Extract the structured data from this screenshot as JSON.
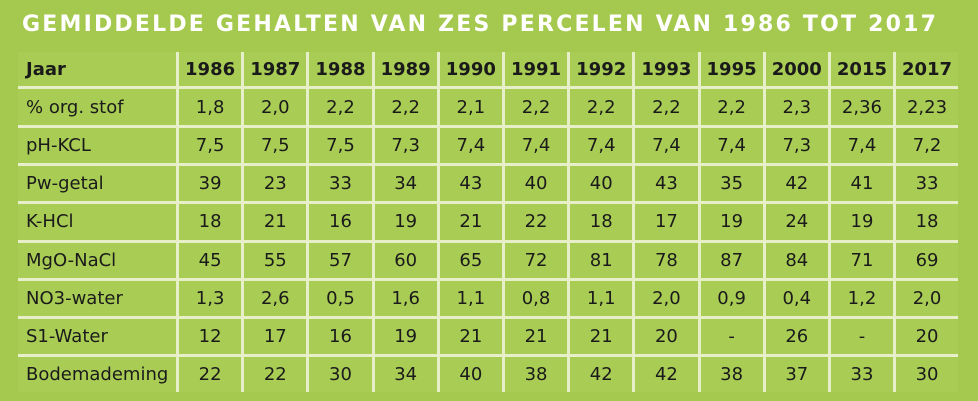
{
  "title": "GEMIDDELDE GEHALTEN VAN ZES PERCELEN VAN 1986 TOT 2017",
  "table": {
    "header": [
      "Jaar",
      "1986",
      "1987",
      "1988",
      "1989",
      "1990",
      "1991",
      "1992",
      "1993",
      "1995",
      "2000",
      "2015",
      "2017"
    ],
    "rows": [
      [
        "% org. stof",
        "1,8",
        "2,0",
        "2,2",
        "2,2",
        "2,1",
        "2,2",
        "2,2",
        "2,2",
        "2,2",
        "2,3",
        "2,36",
        "2,23"
      ],
      [
        "pH-KCL",
        "7,5",
        "7,5",
        "7,5",
        "7,3",
        "7,4",
        "7,4",
        "7,4",
        "7,4",
        "7,4",
        "7,3",
        "7,4",
        "7,2"
      ],
      [
        "Pw-getal",
        "39",
        "23",
        "33",
        "34",
        "43",
        "40",
        "40",
        "43",
        "35",
        "42",
        "41",
        "33"
      ],
      [
        "K-HCl",
        "18",
        "21",
        "16",
        "19",
        "21",
        "22",
        "18",
        "17",
        "19",
        "24",
        "19",
        "18"
      ],
      [
        "MgO-NaCl",
        "45",
        "55",
        "57",
        "60",
        "65",
        "72",
        "81",
        "78",
        "87",
        "84",
        "71",
        "69"
      ],
      [
        "NO3-water",
        "1,3",
        "2,6",
        "0,5",
        "1,6",
        "1,1",
        "0,8",
        "1,1",
        "2,0",
        "0,9",
        "0,4",
        "1,2",
        "2,0"
      ],
      [
        "S1-Water",
        "12",
        "17",
        "16",
        "19",
        "21",
        "21",
        "21",
        "20",
        "-",
        "26",
        "-",
        "20"
      ],
      [
        "Bodemademing",
        "22",
        "22",
        "30",
        "34",
        "40",
        "38",
        "42",
        "42",
        "38",
        "37",
        "33",
        "30"
      ]
    ]
  }
}
